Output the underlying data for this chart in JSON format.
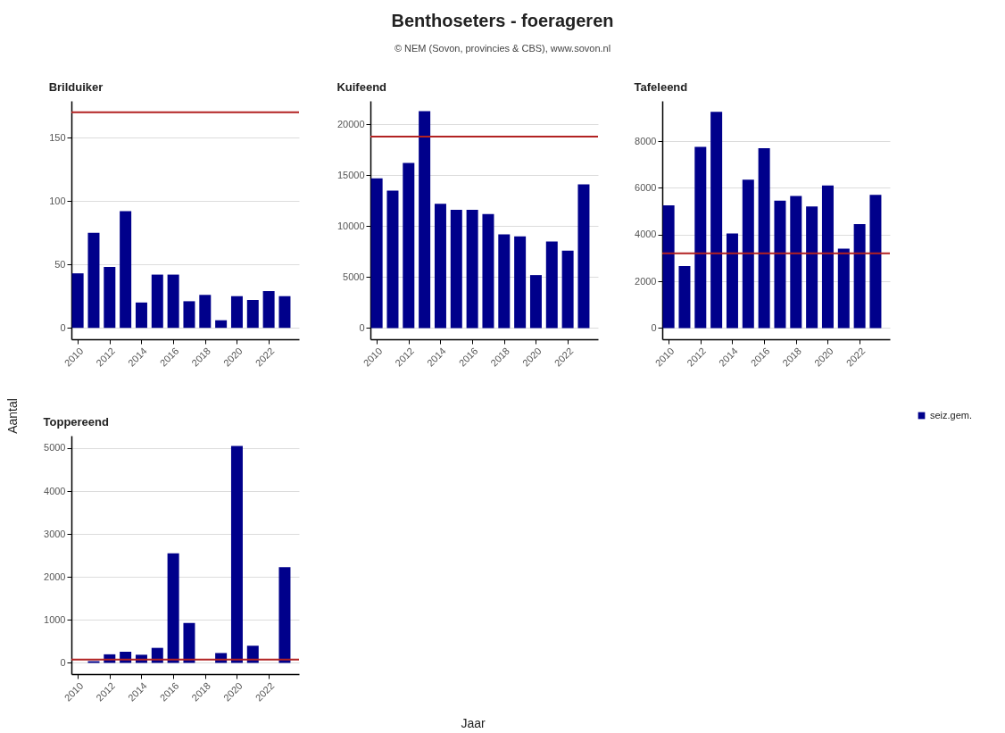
{
  "chart_data": [
    {
      "type": "other",
      "title": "Benthoseters - foerageren",
      "subtitle": "© NEM (Sovon, provincies & CBS), www.sovon.nl",
      "xlabel": "Jaar",
      "ylabel": "Aantal"
    },
    {
      "type": "bar",
      "title": "Brilduiker",
      "x": [
        2010,
        2011,
        2012,
        2013,
        2014,
        2015,
        2016,
        2017,
        2018,
        2019,
        2020,
        2021,
        2022,
        2023
      ],
      "xlim": [
        2009.6,
        2023.9
      ],
      "xticks": [
        2010,
        2012,
        2014,
        2016,
        2018,
        2020,
        2022
      ],
      "ylim": [
        -9,
        179
      ],
      "yticks": [
        0,
        50,
        100,
        150
      ],
      "grid": "y",
      "series": [
        {
          "color": "#00008b",
          "values": [
            43,
            75,
            48,
            92,
            20,
            42,
            42,
            21,
            26,
            6,
            25,
            22,
            29,
            25
          ]
        }
      ],
      "ref_lines": [
        {
          "axis": "y",
          "value": 170,
          "color": "#b22222"
        }
      ]
    },
    {
      "type": "bar",
      "title": "Kuifeend",
      "x": [
        2010,
        2011,
        2012,
        2013,
        2014,
        2015,
        2016,
        2017,
        2018,
        2019,
        2020,
        2021,
        2022,
        2023
      ],
      "xlim": [
        2009.6,
        2023.9
      ],
      "xticks": [
        2010,
        2012,
        2014,
        2016,
        2018,
        2020,
        2022
      ],
      "ylim": [
        -1100,
        22300
      ],
      "yticks": [
        0,
        5000,
        10000,
        15000,
        20000
      ],
      "grid": "y",
      "series": [
        {
          "color": "#00008b",
          "values": [
            14700,
            13500,
            16200,
            21300,
            12200,
            11600,
            11600,
            11200,
            9200,
            9000,
            5200,
            8500,
            7600,
            14100
          ]
        }
      ],
      "ref_lines": [
        {
          "axis": "y",
          "value": 18800,
          "color": "#b22222"
        }
      ]
    },
    {
      "type": "bar",
      "title": "Tafeleend",
      "x": [
        2010,
        2011,
        2012,
        2013,
        2014,
        2015,
        2016,
        2017,
        2018,
        2019,
        2020,
        2021,
        2022,
        2023
      ],
      "xlim": [
        2009.6,
        2023.9
      ],
      "xticks": [
        2010,
        2012,
        2014,
        2016,
        2018,
        2020,
        2022
      ],
      "ylim": [
        -480,
        9720
      ],
      "yticks": [
        0,
        2000,
        4000,
        6000,
        8000
      ],
      "grid": "y",
      "legend": "right",
      "series": [
        {
          "name": "seiz.gem.",
          "color": "#00008b",
          "values": [
            5250,
            2650,
            7750,
            9250,
            4050,
            6350,
            7700,
            5450,
            5650,
            5200,
            6100,
            3400,
            4450,
            5700
          ]
        }
      ],
      "ref_lines": [
        {
          "axis": "y",
          "value": 3200,
          "color": "#b22222"
        }
      ]
    },
    {
      "type": "bar",
      "title": "Toppereend",
      "xlim": [
        2009.6,
        2023.9
      ],
      "xticks": [
        2010,
        2012,
        2014,
        2016,
        2018,
        2020,
        2022
      ],
      "ylim": [
        -260,
        5290
      ],
      "yticks": [
        0,
        1000,
        2000,
        3000,
        4000,
        5000
      ],
      "grid": "y",
      "series": [
        {
          "color": "#00008b",
          "x": [
            2011,
            2012,
            2013,
            2014,
            2015,
            2016,
            2017,
            2019,
            2020,
            2021,
            2023
          ],
          "values": [
            40,
            200,
            260,
            190,
            350,
            2550,
            930,
            230,
            5050,
            400,
            2230
          ]
        }
      ],
      "ref_lines": [
        {
          "axis": "y",
          "value": 80,
          "color": "#b22222"
        }
      ]
    }
  ]
}
